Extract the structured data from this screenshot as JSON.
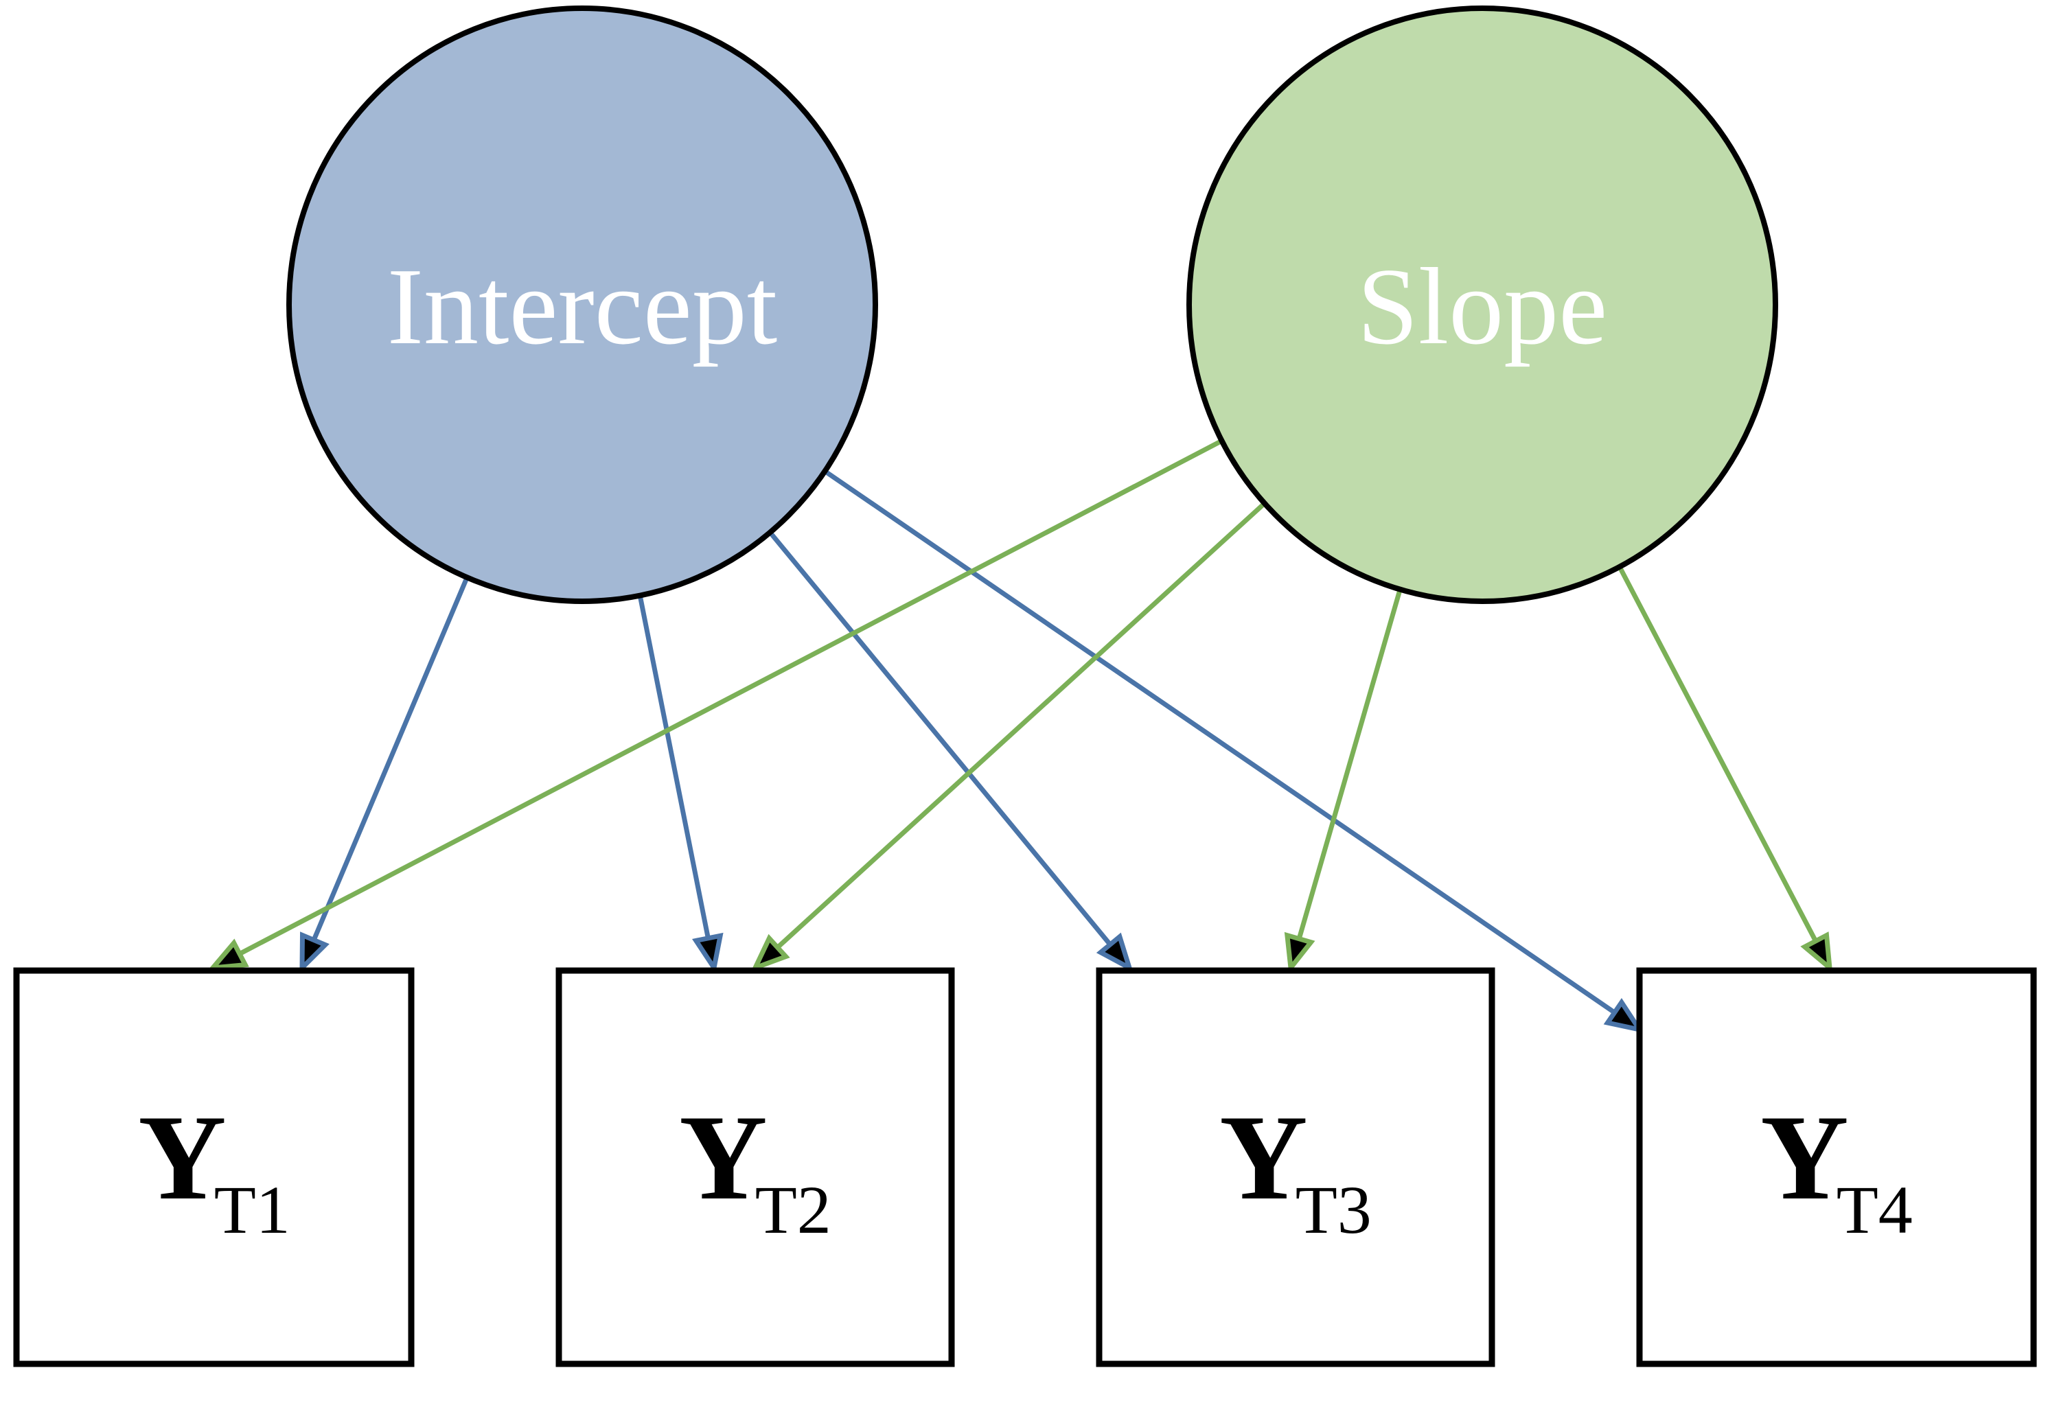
{
  "latents": [
    {
      "id": "intercept",
      "label": "Intercept",
      "fill": "#a3b8d4",
      "path_color": "#4a74a8"
    },
    {
      "id": "slope",
      "label": "Slope",
      "fill": "#bfdbab",
      "path_color": "#7bb057"
    }
  ],
  "observed": [
    {
      "id": "yt1",
      "main": "Y",
      "subscript": "T1"
    },
    {
      "id": "yt2",
      "main": "Y",
      "subscript": "T2"
    },
    {
      "id": "yt3",
      "main": "Y",
      "subscript": "T3"
    },
    {
      "id": "yt4",
      "main": "Y",
      "subscript": "T4"
    }
  ],
  "paths": [
    {
      "from": "intercept",
      "to": "yt1"
    },
    {
      "from": "intercept",
      "to": "yt2"
    },
    {
      "from": "intercept",
      "to": "yt3"
    },
    {
      "from": "intercept",
      "to": "yt4"
    },
    {
      "from": "slope",
      "to": "yt1"
    },
    {
      "from": "slope",
      "to": "yt2"
    },
    {
      "from": "slope",
      "to": "yt3"
    },
    {
      "from": "slope",
      "to": "yt4"
    }
  ],
  "colors": {
    "outline": "#000000",
    "arrowhead_fill": "#000000"
  },
  "icons": {
    "latent_shape": "circle-node-icon",
    "observed_shape": "square-node-icon",
    "path_marker": "open-arrowhead-icon"
  }
}
